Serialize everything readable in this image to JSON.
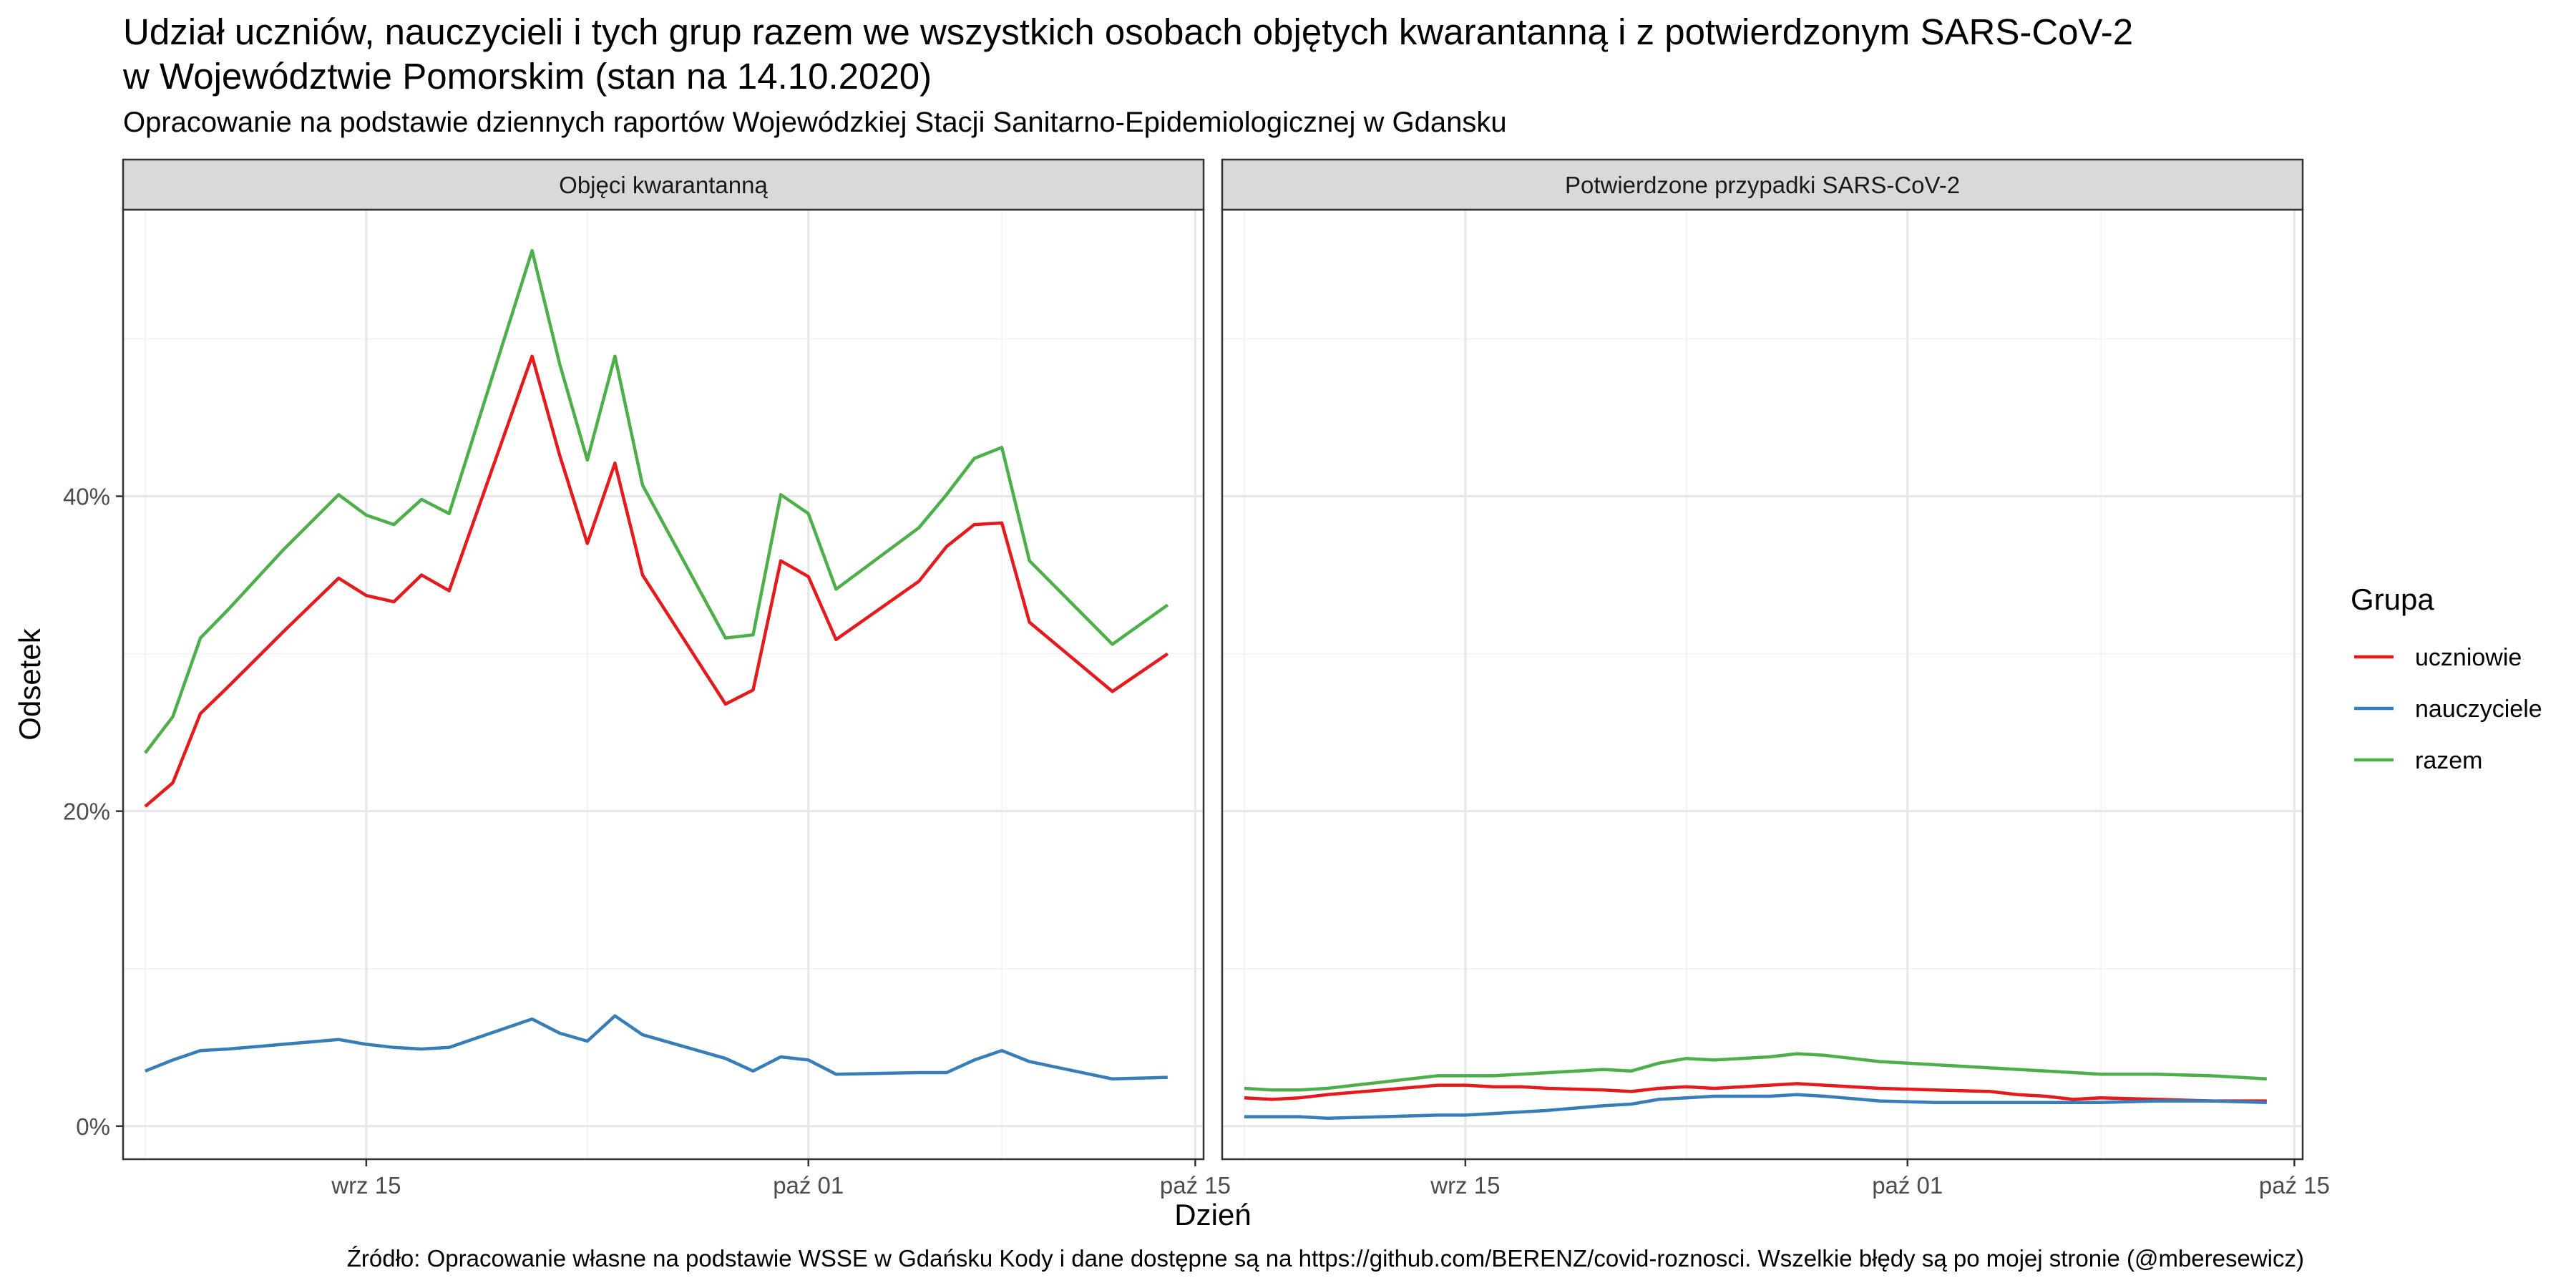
{
  "chart_data": {
    "type": "line",
    "title_line1": "Udział uczniów, nauczycieli i tych grup razem we wszystkich osobach objętych kwarantanną i z potwierdzonym SARS-CoV-2",
    "title_line2": "w Województwie Pomorskim (stan na 14.10.2020)",
    "subtitle": "Opracowanie na podstawie dziennych raportów Wojewódzkiej Stacji Sanitarno-Epidemiologicznej w Gdansku",
    "caption": "Źródło: Opracowanie własne na podstawie WSSE w Gdańsku Kody i dane dostępne są na https://github.com/BERENZ/covid-roznosci. Wszelkie błędy są po mojej stronie (@mberesewicz)",
    "xlabel": "Dzień",
    "ylabel": "Odsetek",
    "x_ticks": [
      {
        "label": "wrz 15",
        "day": 15
      },
      {
        "label": "paź 01",
        "day": 31
      },
      {
        "label": "paź 15",
        "day": 45
      }
    ],
    "x_range_days": [
      6.2,
      45.3
    ],
    "y_ticks": [
      {
        "label": "0%",
        "value": 0
      },
      {
        "label": "20%",
        "value": 20
      },
      {
        "label": "40%",
        "value": 40
      }
    ],
    "y_range": [
      -2.1,
      58.2
    ],
    "grid": true,
    "legend": {
      "title": "Grupa",
      "placement": "right",
      "items": [
        {
          "label": "uczniowie",
          "color": "#E41A1C"
        },
        {
          "label": "nauczyciele",
          "color": "#377EB8"
        },
        {
          "label": "razem",
          "color": "#4DAF4A"
        }
      ]
    },
    "panels": [
      {
        "strip": "Objęci kwarantanną",
        "series": [
          {
            "name": "uczniowie",
            "color": "#E41A1C",
            "points": [
              [
                7,
                20.3
              ],
              [
                8,
                21.8
              ],
              [
                9,
                26.2
              ],
              [
                10,
                27.9
              ],
              [
                12,
                31.4
              ],
              [
                14,
                34.8
              ],
              [
                15,
                33.7
              ],
              [
                16,
                33.3
              ],
              [
                17,
                35.0
              ],
              [
                18,
                34.0
              ],
              [
                21,
                48.9
              ],
              [
                22,
                42.6
              ],
              [
                23,
                37.0
              ],
              [
                24,
                42.1
              ],
              [
                25,
                35.0
              ],
              [
                28,
                26.8
              ],
              [
                29,
                27.7
              ],
              [
                30,
                35.9
              ],
              [
                31,
                34.9
              ],
              [
                32,
                30.9
              ],
              [
                35,
                34.6
              ],
              [
                36,
                36.8
              ],
              [
                37,
                38.2
              ],
              [
                38,
                38.3
              ],
              [
                39,
                32.0
              ],
              [
                42,
                27.6
              ],
              [
                44,
                30.0
              ]
            ]
          },
          {
            "name": "nauczyciele",
            "color": "#377EB8",
            "points": [
              [
                7,
                3.5
              ],
              [
                8,
                4.2
              ],
              [
                9,
                4.8
              ],
              [
                10,
                4.9
              ],
              [
                12,
                5.2
              ],
              [
                14,
                5.5
              ],
              [
                15,
                5.2
              ],
              [
                16,
                5.0
              ],
              [
                17,
                4.9
              ],
              [
                18,
                5.0
              ],
              [
                21,
                6.8
              ],
              [
                22,
                5.9
              ],
              [
                23,
                5.4
              ],
              [
                24,
                7.0
              ],
              [
                25,
                5.8
              ],
              [
                28,
                4.3
              ],
              [
                29,
                3.5
              ],
              [
                30,
                4.4
              ],
              [
                31,
                4.2
              ],
              [
                32,
                3.3
              ],
              [
                35,
                3.4
              ],
              [
                36,
                3.4
              ],
              [
                37,
                4.2
              ],
              [
                38,
                4.8
              ],
              [
                39,
                4.1
              ],
              [
                42,
                3.0
              ],
              [
                44,
                3.1
              ]
            ]
          },
          {
            "name": "razem",
            "color": "#4DAF4A",
            "points": [
              [
                7,
                23.7
              ],
              [
                8,
                26.0
              ],
              [
                9,
                31.0
              ],
              [
                10,
                32.8
              ],
              [
                12,
                36.6
              ],
              [
                14,
                40.1
              ],
              [
                15,
                38.8
              ],
              [
                16,
                38.2
              ],
              [
                17,
                39.8
              ],
              [
                18,
                38.9
              ],
              [
                21,
                55.6
              ],
              [
                22,
                48.4
              ],
              [
                23,
                42.3
              ],
              [
                24,
                48.9
              ],
              [
                25,
                40.7
              ],
              [
                28,
                31.0
              ],
              [
                29,
                31.2
              ],
              [
                30,
                40.1
              ],
              [
                31,
                38.9
              ],
              [
                32,
                34.1
              ],
              [
                35,
                38.0
              ],
              [
                36,
                40.1
              ],
              [
                37,
                42.4
              ],
              [
                38,
                43.1
              ],
              [
                39,
                35.9
              ],
              [
                42,
                30.6
              ],
              [
                44,
                33.1
              ]
            ]
          }
        ]
      },
      {
        "strip": "Potwierdzone przypadki SARS-CoV-2",
        "series": [
          {
            "name": "uczniowie",
            "color": "#E41A1C",
            "points": [
              [
                7,
                1.8
              ],
              [
                8,
                1.7
              ],
              [
                9,
                1.8
              ],
              [
                10,
                2.0
              ],
              [
                12,
                2.3
              ],
              [
                14,
                2.6
              ],
              [
                15,
                2.6
              ],
              [
                16,
                2.5
              ],
              [
                17,
                2.5
              ],
              [
                18,
                2.4
              ],
              [
                20,
                2.3
              ],
              [
                21,
                2.2
              ],
              [
                22,
                2.4
              ],
              [
                23,
                2.5
              ],
              [
                24,
                2.4
              ],
              [
                26,
                2.6
              ],
              [
                27,
                2.7
              ],
              [
                28,
                2.6
              ],
              [
                30,
                2.4
              ],
              [
                32,
                2.3
              ],
              [
                34,
                2.2
              ],
              [
                35,
                2.0
              ],
              [
                36,
                1.9
              ],
              [
                37,
                1.7
              ],
              [
                38,
                1.8
              ],
              [
                40,
                1.7
              ],
              [
                42,
                1.6
              ],
              [
                44,
                1.6
              ]
            ]
          },
          {
            "name": "nauczyciele",
            "color": "#377EB8",
            "points": [
              [
                7,
                0.6
              ],
              [
                8,
                0.6
              ],
              [
                9,
                0.6
              ],
              [
                10,
                0.5
              ],
              [
                12,
                0.6
              ],
              [
                14,
                0.7
              ],
              [
                15,
                0.7
              ],
              [
                16,
                0.8
              ],
              [
                17,
                0.9
              ],
              [
                18,
                1.0
              ],
              [
                20,
                1.3
              ],
              [
                21,
                1.4
              ],
              [
                22,
                1.7
              ],
              [
                23,
                1.8
              ],
              [
                24,
                1.9
              ],
              [
                26,
                1.9
              ],
              [
                27,
                2.0
              ],
              [
                28,
                1.9
              ],
              [
                30,
                1.6
              ],
              [
                32,
                1.5
              ],
              [
                34,
                1.5
              ],
              [
                36,
                1.5
              ],
              [
                38,
                1.5
              ],
              [
                40,
                1.6
              ],
              [
                42,
                1.6
              ],
              [
                44,
                1.5
              ]
            ]
          },
          {
            "name": "razem",
            "color": "#4DAF4A",
            "points": [
              [
                7,
                2.4
              ],
              [
                8,
                2.3
              ],
              [
                9,
                2.3
              ],
              [
                10,
                2.4
              ],
              [
                12,
                2.8
              ],
              [
                14,
                3.2
              ],
              [
                15,
                3.2
              ],
              [
                16,
                3.2
              ],
              [
                17,
                3.3
              ],
              [
                18,
                3.4
              ],
              [
                20,
                3.6
              ],
              [
                21,
                3.5
              ],
              [
                22,
                4.0
              ],
              [
                23,
                4.3
              ],
              [
                24,
                4.2
              ],
              [
                26,
                4.4
              ],
              [
                27,
                4.6
              ],
              [
                28,
                4.5
              ],
              [
                29,
                4.3
              ],
              [
                30,
                4.1
              ],
              [
                32,
                3.9
              ],
              [
                34,
                3.7
              ],
              [
                36,
                3.5
              ],
              [
                38,
                3.3
              ],
              [
                39,
                3.3
              ],
              [
                40,
                3.3
              ],
              [
                42,
                3.2
              ],
              [
                44,
                3.0
              ]
            ]
          }
        ]
      }
    ]
  }
}
